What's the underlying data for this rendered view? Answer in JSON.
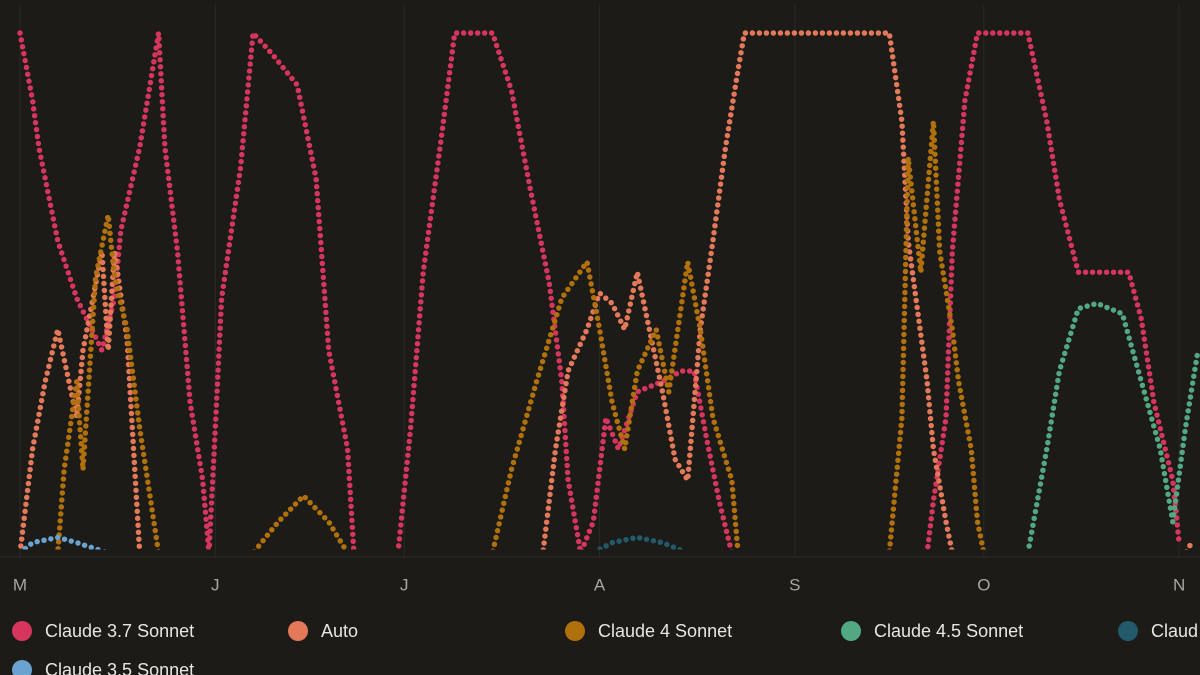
{
  "chart_data": {
    "type": "dotted-line",
    "xlim": [
      0,
      187
    ],
    "xticks": [
      {
        "value": 0,
        "label": "M"
      },
      {
        "value": 31,
        "label": "J"
      },
      {
        "value": 61,
        "label": "J"
      },
      {
        "value": 92,
        "label": "A"
      },
      {
        "value": 123,
        "label": "S"
      },
      {
        "value": 153,
        "label": "O"
      },
      {
        "value": 184,
        "label": "N"
      }
    ],
    "ylim": [
      0,
      100
    ],
    "grid": true,
    "series": [
      {
        "name": "Claude 3.7 Sonnet",
        "color": "#d6365e",
        "x": [
          0,
          2,
          3,
          6,
          9,
          13,
          15,
          16,
          19,
          22,
          23,
          25,
          27,
          29,
          30,
          31,
          32,
          35,
          37,
          40,
          44,
          47,
          49,
          52,
          53,
          60,
          62,
          64,
          67,
          69,
          75,
          78,
          81,
          84,
          86,
          87,
          89,
          91,
          93,
          95,
          98,
          102,
          105,
          107,
          109,
          111,
          113,
          144,
          145,
          147,
          148,
          150,
          152,
          160,
          163,
          165,
          168,
          176,
          178,
          180,
          183,
          184
        ],
        "values": [
          100,
          87,
          78,
          60,
          49,
          39,
          49,
          62,
          78,
          100,
          78,
          58,
          29,
          14,
          0,
          24,
          49,
          74,
          100,
          96,
          90,
          72,
          39,
          20,
          0,
          0,
          24,
          54,
          81,
          100,
          100,
          89,
          70,
          52,
          33,
          14,
          0,
          6,
          26,
          20,
          31,
          33,
          35,
          35,
          22,
          10,
          0,
          0,
          10,
          26,
          58,
          87,
          100,
          100,
          83,
          68,
          54,
          54,
          45,
          29,
          14,
          2
        ]
      },
      {
        "name": "Auto",
        "color": "#e4795a",
        "x": [
          0,
          2,
          4,
          6,
          9,
          10,
          13,
          14,
          15,
          17,
          19,
          83,
          85,
          87,
          90,
          92,
          94,
          96,
          98,
          102,
          104,
          106,
          108,
          110,
          112,
          114,
          115,
          138,
          140,
          141,
          144,
          145,
          147,
          148,
          185,
          186
        ],
        "values": [
          0,
          20,
          33,
          43,
          26,
          39,
          58,
          39,
          58,
          41,
          0,
          0,
          20,
          35,
          43,
          50,
          48,
          43,
          54,
          31,
          18,
          14,
          43,
          60,
          78,
          93,
          100,
          100,
          83,
          60,
          33,
          20,
          6,
          0,
          0,
          2
        ]
      },
      {
        "name": "Claude 4 Sonnet",
        "color": "#b0700b",
        "x": [
          0,
          6,
          7,
          9,
          10,
          12,
          14,
          15,
          17,
          19,
          22,
          37,
          41,
          45,
          49,
          52,
          75,
          78,
          82,
          86,
          90,
          92,
          94,
          96,
          98,
          101,
          103,
          106,
          108,
          110,
          113,
          114,
          138,
          140,
          141,
          143,
          145,
          146,
          148,
          149,
          151,
          152,
          153,
          187
        ],
        "values": [
          0,
          0,
          16,
          33,
          16,
          53,
          65,
          53,
          43,
          24,
          0,
          0,
          6,
          11,
          6,
          0,
          0,
          16,
          33,
          49,
          56,
          43,
          29,
          20,
          35,
          43,
          31,
          56,
          43,
          26,
          14,
          0,
          0,
          26,
          76,
          54,
          83,
          58,
          43,
          33,
          20,
          6,
          0,
          0
        ]
      },
      {
        "name": "Claude 4.5 Sonnet",
        "color": "#52a882",
        "x": [
          0,
          160,
          163,
          165,
          168,
          171,
          175,
          178,
          181,
          183,
          185,
          187
        ],
        "values": [
          0,
          0,
          20,
          35,
          47,
          48,
          46,
          33,
          20,
          6,
          24,
          39
        ]
      },
      {
        "name": "Claud",
        "color": "#235a6b",
        "x": [
          0,
          91,
          94,
          98,
          102,
          106,
          187
        ],
        "values": [
          0,
          0,
          2,
          3,
          2,
          0,
          0
        ]
      },
      {
        "name": "Claude 3.5 Sonnet",
        "color": "#6aa3d0",
        "x": [
          0,
          2,
          6,
          9,
          14,
          187
        ],
        "values": [
          0,
          2,
          3,
          2,
          0,
          0
        ]
      }
    ]
  }
}
